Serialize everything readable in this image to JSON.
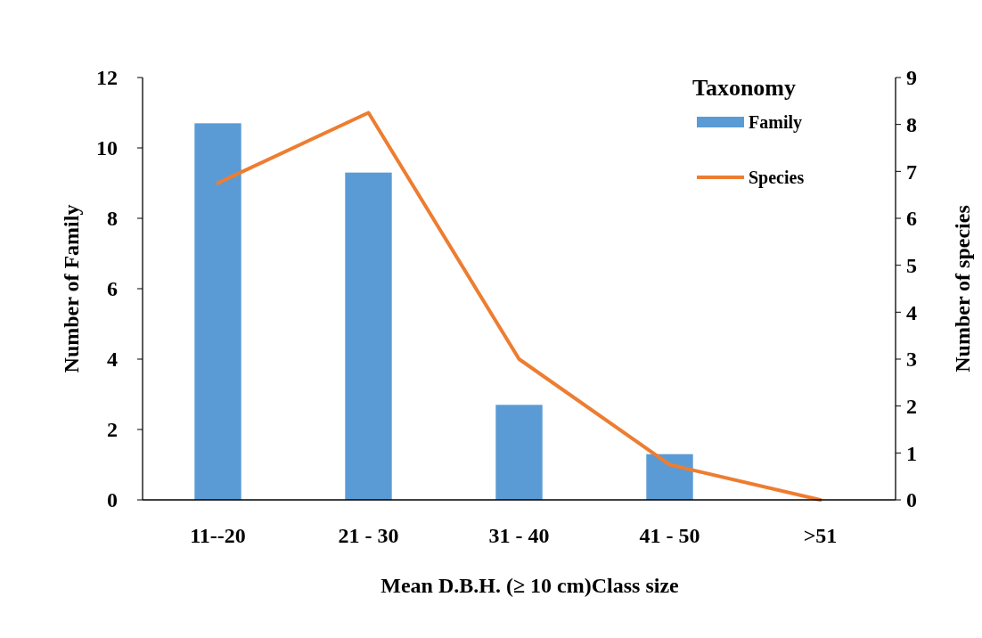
{
  "chart_data": {
    "type": "bar",
    "xlabel": "Mean D.B.H. (≥ 10 cm)Class size",
    "ylabel": "Number of Family",
    "y2label": "Number of species",
    "legend_title": "Taxonomy",
    "legend": "top right",
    "categories": [
      "11--20",
      "21 - 30",
      "31 - 40",
      "41 - 50",
      ">51"
    ],
    "series": [
      {
        "name": "Family",
        "color": "#5b9bd5",
        "values": [
          10.7,
          9.3,
          2.7,
          1.3,
          null
        ]
      },
      {
        "name": "Species",
        "type": "line",
        "axis": "y2",
        "color": "#ed7d31",
        "line_style": "solid",
        "values": [
          6.75,
          8.25,
          3,
          0.75,
          0
        ]
      }
    ],
    "ylim": [
      0,
      12
    ],
    "yticks": [
      0,
      2,
      4,
      6,
      8,
      10,
      12
    ],
    "y2lim": [
      0,
      9
    ],
    "y2ticks": [
      0,
      1,
      2,
      3,
      4,
      5,
      6,
      7,
      8,
      9
    ],
    "grid": false
  }
}
